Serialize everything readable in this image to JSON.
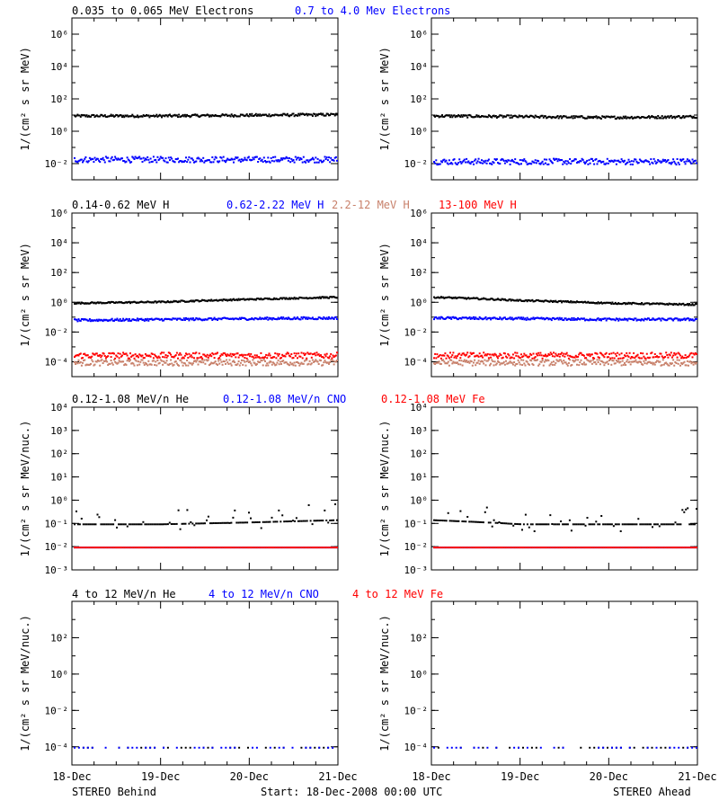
{
  "colors": {
    "black": "#000000",
    "blue": "#0000ff",
    "tan": "#c8806a",
    "red": "#ff0000"
  },
  "rows": [
    {
      "id": "electrons",
      "titles": [
        {
          "text": "0.035 to 0.065 MeV Electrons",
          "color": "#000000"
        },
        {
          "text": "0.7 to 4.0 Mev Electrons",
          "color": "#0000ff"
        }
      ],
      "ylabel": "1/(cm² s sr MeV)",
      "ylim_log": [
        -3,
        7
      ],
      "ticks": [
        {
          "exp": -2,
          "label": "10⁻²"
        },
        {
          "exp": 0,
          "label": "10⁰"
        },
        {
          "exp": 2,
          "label": "10²"
        },
        {
          "exp": 4,
          "label": "10⁴"
        },
        {
          "exp": 6,
          "label": "10⁶"
        }
      ]
    },
    {
      "id": "protons",
      "titles": [
        {
          "text": "0.14-0.62 MeV H",
          "color": "#000000"
        },
        {
          "text": "0.62-2.22 MeV H",
          "color": "#0000ff"
        },
        {
          "text": "2.2-12 MeV H",
          "color": "#c8806a"
        },
        {
          "text": "13-100 MeV H",
          "color": "#ff0000"
        }
      ],
      "ylabel": "1/(cm² s sr MeV)",
      "ylim_log": [
        -5,
        6
      ],
      "ticks": [
        {
          "exp": -4,
          "label": "10⁻⁴"
        },
        {
          "exp": -2,
          "label": "10⁻²"
        },
        {
          "exp": 0,
          "label": "10⁰"
        },
        {
          "exp": 2,
          "label": "10²"
        },
        {
          "exp": 4,
          "label": "10⁴"
        },
        {
          "exp": 6,
          "label": "10⁶"
        }
      ]
    },
    {
      "id": "heavy-low",
      "titles": [
        {
          "text": "0.12-1.08 MeV/n He",
          "color": "#000000"
        },
        {
          "text": "0.12-1.08 MeV/n CNO",
          "color": "#0000ff"
        },
        {
          "text": "0.12-1.08 MeV Fe",
          "color": "#ff0000"
        }
      ],
      "ylabel": "1/(cm² s sr MeV/nuc.)",
      "ylim_log": [
        -3,
        4
      ],
      "ticks": [
        {
          "exp": -3,
          "label": "10⁻³"
        },
        {
          "exp": -2,
          "label": "10⁻²"
        },
        {
          "exp": -1,
          "label": "10⁻¹"
        },
        {
          "exp": 0,
          "label": "10⁰"
        },
        {
          "exp": 1,
          "label": "10¹"
        },
        {
          "exp": 2,
          "label": "10²"
        },
        {
          "exp": 3,
          "label": "10³"
        },
        {
          "exp": 4,
          "label": "10⁴"
        }
      ]
    },
    {
      "id": "heavy-high",
      "titles": [
        {
          "text": "4 to 12 MeV/n He",
          "color": "#000000"
        },
        {
          "text": "4 to 12 MeV/n CNO",
          "color": "#0000ff"
        },
        {
          "text": "4 to 12 MeV Fe",
          "color": "#ff0000"
        }
      ],
      "ylabel": "1/(cm² s sr MeV/nuc.)",
      "ylim_log": [
        -5,
        4
      ],
      "ticks": [
        {
          "exp": -4,
          "label": "10⁻⁴"
        },
        {
          "exp": -2,
          "label": "10⁻²"
        },
        {
          "exp": 0,
          "label": "10⁰"
        },
        {
          "exp": 2,
          "label": "10²"
        }
      ]
    }
  ],
  "x_ticks": [
    "18-Dec",
    "19-Dec",
    "20-Dec",
    "21-Dec"
  ],
  "footer": {
    "left": "STEREO Behind",
    "center": "Start: 18-Dec-2008 00:00 UTC",
    "right": "STEREO Ahead"
  },
  "chart_data": [
    {
      "type": "scatter",
      "panel": "behind-electrons",
      "x": [
        "18-Dec",
        "19-Dec",
        "20-Dec",
        "21-Dec"
      ],
      "series": [
        {
          "values": [
            10,
            10,
            11,
            12
          ]
        },
        {
          "values": [
            0.02,
            0.02,
            0.02,
            0.02
          ]
        }
      ]
    },
    {
      "type": "scatter",
      "panel": "ahead-electrons",
      "x": [
        "18-Dec",
        "19-Dec",
        "20-Dec",
        "21-Dec"
      ],
      "series": [
        {
          "values": [
            10,
            9,
            8,
            9
          ]
        },
        {
          "values": [
            0.015,
            0.015,
            0.015,
            0.015
          ]
        }
      ]
    },
    {
      "type": "scatter",
      "panel": "behind-protons",
      "x": [
        "18-Dec",
        "19-Dec",
        "20-Dec",
        "21-Dec"
      ],
      "series": [
        {
          "values": [
            1,
            1.2,
            1.8,
            2.5
          ]
        },
        {
          "values": [
            0.07,
            0.08,
            0.09,
            0.1
          ]
        },
        {
          "values": [
            0.0001,
            0.0001,
            0.0001,
            0.0001
          ]
        },
        {
          "values": [
            0.0003,
            0.0003,
            0.0003,
            0.0003
          ]
        }
      ]
    },
    {
      "type": "scatter",
      "panel": "ahead-protons",
      "x": [
        "18-Dec",
        "19-Dec",
        "20-Dec",
        "21-Dec"
      ],
      "series": [
        {
          "values": [
            2.5,
            1.5,
            1,
            0.8
          ]
        },
        {
          "values": [
            0.1,
            0.09,
            0.08,
            0.08
          ]
        },
        {
          "values": [
            0.0001,
            0.0001,
            0.0001,
            0.0001
          ]
        },
        {
          "values": [
            0.0003,
            0.0003,
            0.0003,
            0.0003
          ]
        }
      ]
    },
    {
      "type": "scatter",
      "panel": "behind-heavy-low",
      "x": [
        "18-Dec",
        "19-Dec",
        "20-Dec",
        "21-Dec"
      ],
      "series": [
        {
          "values": [
            0.1,
            0.1,
            0.12,
            0.15
          ]
        },
        {
          "values": [
            0.01,
            0.01,
            0.01,
            0.01
          ]
        },
        {
          "values": [
            0.01,
            0.01,
            0.01,
            0.01
          ]
        }
      ]
    },
    {
      "type": "scatter",
      "panel": "ahead-heavy-low",
      "x": [
        "18-Dec",
        "19-Dec",
        "20-Dec",
        "21-Dec"
      ],
      "series": [
        {
          "values": [
            0.15,
            0.1,
            0.1,
            0.1
          ]
        },
        {
          "values": [
            0.01,
            0.01,
            0.01,
            0.01
          ]
        },
        {
          "values": [
            0.01,
            0.01,
            0.01,
            0.01
          ]
        }
      ]
    },
    {
      "type": "scatter",
      "panel": "behind-heavy-high",
      "x": [
        "18-Dec",
        "19-Dec",
        "20-Dec",
        "21-Dec"
      ],
      "series": [
        {
          "values": [
            0.0001,
            0.0001,
            0.0001,
            0.0001
          ]
        },
        {
          "values": [
            0.0001,
            0.0001,
            0.0001,
            0.0001
          ]
        }
      ]
    },
    {
      "type": "scatter",
      "panel": "ahead-heavy-high",
      "x": [
        "18-Dec",
        "19-Dec",
        "20-Dec",
        "21-Dec"
      ],
      "series": [
        {
          "values": [
            0.0001,
            0.0001,
            0.0001,
            0.0001
          ]
        },
        {
          "values": [
            0.0001,
            0.0001,
            0.0001,
            0.0001
          ]
        }
      ]
    }
  ]
}
